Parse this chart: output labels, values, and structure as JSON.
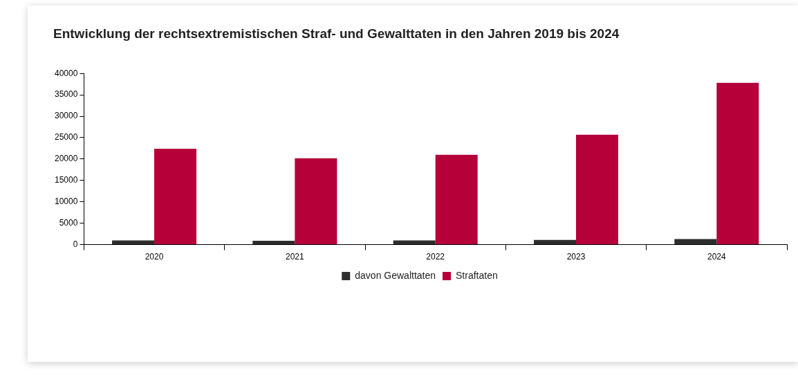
{
  "chart_data": {
    "type": "bar",
    "title": "Entwicklung der rechtsextremistischen Straf- und Gewalttaten in den Jahren 2019 bis 2024",
    "categories": [
      "2020",
      "2021",
      "2022",
      "2023",
      "2024"
    ],
    "series": [
      {
        "name": "davon Gewalttaten",
        "color": "#2d2d2d",
        "values": [
          1000,
          900,
          1000,
          1100,
          1300
        ]
      },
      {
        "name": "Straftaten",
        "color": "#b5003a",
        "values": [
          22400,
          20200,
          21000,
          25700,
          37800
        ]
      }
    ],
    "ylim": [
      0,
      40000
    ],
    "yticks": [
      0,
      5000,
      10000,
      15000,
      20000,
      25000,
      30000,
      35000,
      40000
    ],
    "grid": false,
    "legend": "bottom"
  }
}
